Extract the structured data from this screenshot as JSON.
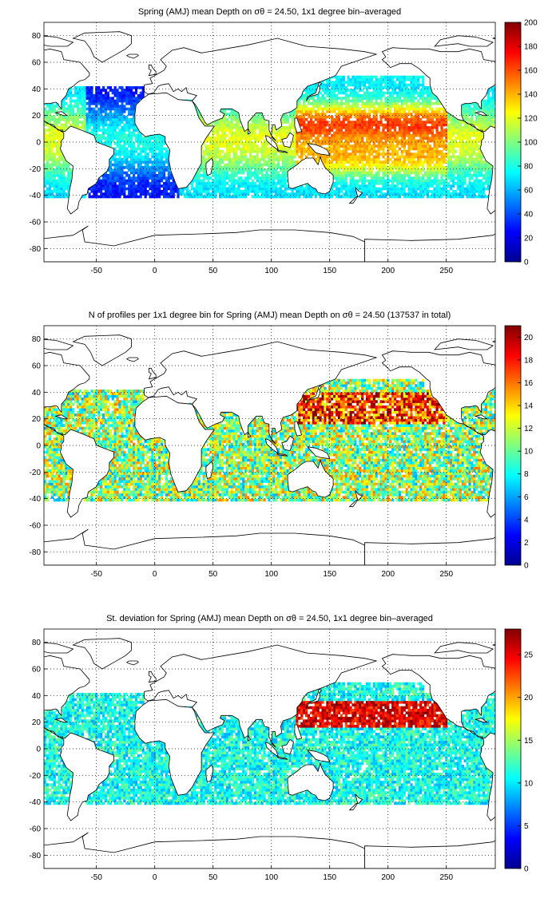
{
  "figure": {
    "panels": [
      {
        "id": "mean",
        "title": "Spring (AMJ) mean Depth on σθ = 24.50, 1x1 degree bin–averaged",
        "colorbar": {
          "ticks": [
            0,
            20,
            40,
            60,
            80,
            100,
            120,
            140,
            160,
            180,
            200
          ],
          "min": 0,
          "max": 200
        },
        "field": "mean_depth"
      },
      {
        "id": "count",
        "title": "N of profiles per 1x1 degree bin for Spring (AMJ) mean Depth on σθ = 24.50 (137537 in total)",
        "colorbar": {
          "ticks": [
            0,
            2,
            4,
            6,
            8,
            10,
            12,
            14,
            16,
            18,
            20
          ],
          "min": 0,
          "max": 21
        },
        "field": "profile_count"
      },
      {
        "id": "std",
        "title": "St. deviation for Spring (AMJ) mean Depth on σθ = 24.50, 1x1 degree bin–averaged",
        "colorbar": {
          "ticks": [
            0,
            5,
            10,
            15,
            20,
            25
          ],
          "min": 0,
          "max": 28
        },
        "field": "std_depth"
      }
    ],
    "x_axis": {
      "ticks": [
        -50,
        0,
        50,
        100,
        150,
        200,
        250
      ],
      "range": [
        -95,
        292
      ]
    },
    "y_axis": {
      "ticks": [
        -80,
        -60,
        -40,
        -20,
        0,
        20,
        40,
        60,
        80
      ],
      "range": [
        -90,
        90
      ]
    },
    "grid": true,
    "colormap": "jet"
  }
}
